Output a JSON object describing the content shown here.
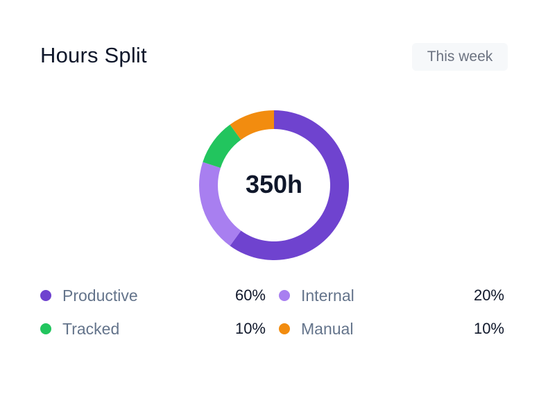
{
  "card": {
    "title": "Hours Split",
    "period_label": "This week"
  },
  "chart_data": {
    "type": "pie",
    "variant": "donut",
    "center_label": "350h",
    "slices": [
      {
        "name": "Productive",
        "value": 60,
        "label": "60%",
        "color": "#6f43cf"
      },
      {
        "name": "Internal",
        "value": 20,
        "label": "20%",
        "color": "#a87ff0"
      },
      {
        "name": "Tracked",
        "value": 10,
        "label": "10%",
        "color": "#22c55e"
      },
      {
        "name": "Manual",
        "value": 10,
        "label": "10%",
        "color": "#f28c0f"
      }
    ],
    "start": "top",
    "direction": "clockwise",
    "legend_placement": "bottom"
  }
}
